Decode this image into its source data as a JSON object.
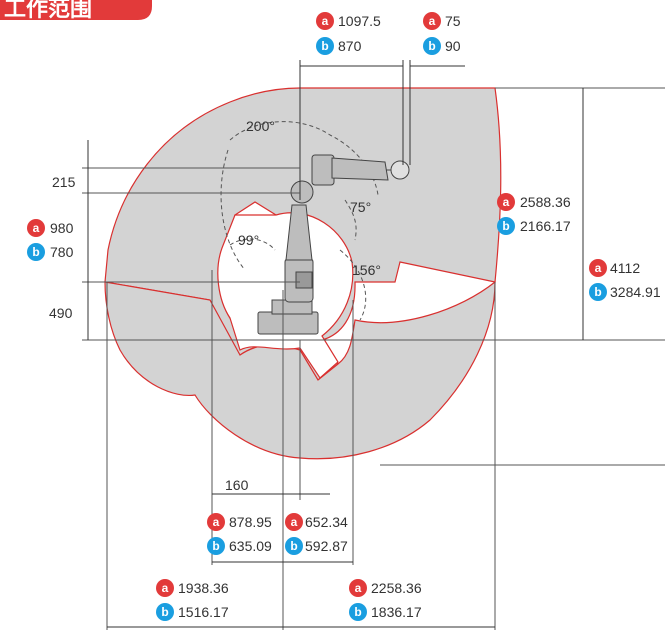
{
  "banner": {
    "text": "工作范围",
    "color": "#e23a3a"
  },
  "colors": {
    "a_marker": "#e23a3a",
    "b_marker": "#1a9ee0",
    "envelope_fill": "#d3d3d3",
    "envelope_stroke": "#d9302f"
  },
  "markers": {
    "a": "a",
    "b": "b"
  },
  "angles": {
    "a200": "200°",
    "a75": "75°",
    "a99": "99°",
    "a156": "156°"
  },
  "dims": {
    "top_a1": "1097.5",
    "top_a2": "75",
    "top_b1": "870",
    "top_b2": "90",
    "left_215": "215",
    "left_a980": "980",
    "left_b780": "780",
    "left_490": "490",
    "right_a1": "2588.36",
    "right_b1": "2166.17",
    "right_a2": "4112",
    "right_b2": "3284.91",
    "bottom_160": "160",
    "bottom_a1": "878.95",
    "bottom_a2": "652.34",
    "bottom_b1": "635.09",
    "bottom_b2": "592.87",
    "bottom_a3": "1938.36",
    "bottom_b3": "1516.17",
    "bottom_a4": "2258.36",
    "bottom_b4": "1836.17"
  }
}
